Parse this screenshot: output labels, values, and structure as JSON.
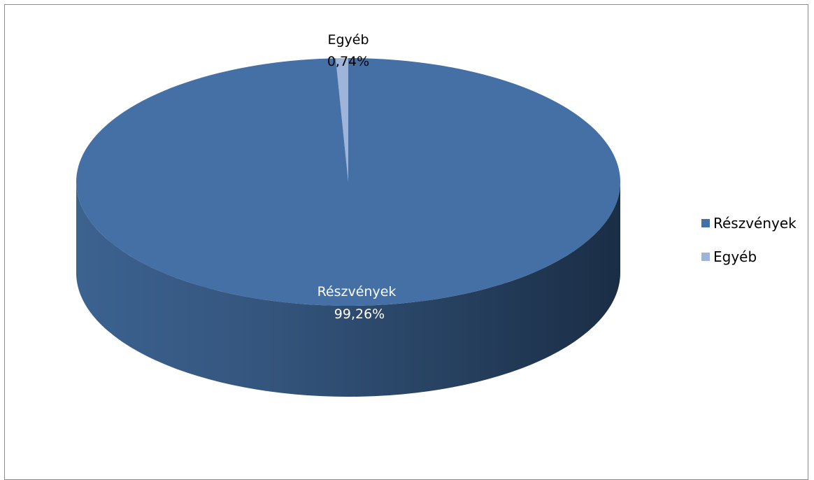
{
  "chart_data": {
    "type": "pie",
    "categories": [
      "Részvények",
      "Egyéb"
    ],
    "values": [
      99.26,
      0.74
    ],
    "data_labels": [
      {
        "name": "Részvények",
        "value": "99,26%"
      },
      {
        "name": "Egyéb",
        "value": "0,74%"
      }
    ],
    "legend": {
      "position": "right",
      "entries": [
        "Részvények",
        "Egyéb"
      ]
    },
    "colors": {
      "Részvények": "#4470a5",
      "Egyéb": "#9eb4d8"
    },
    "style": "3d"
  }
}
